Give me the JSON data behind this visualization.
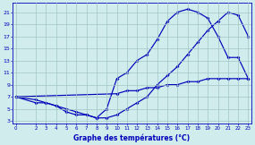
{
  "title": "Graphe des températures (°C)",
  "bg_color": "#d0ecec",
  "line_color": "#0000bb",
  "grid_color": "#a0c4c4",
  "xlim": [
    -0.3,
    23.3
  ],
  "ylim": [
    2.5,
    22.5
  ],
  "xticks": [
    0,
    2,
    3,
    4,
    5,
    6,
    7,
    8,
    9,
    10,
    11,
    12,
    13,
    14,
    15,
    16,
    17,
    18,
    19,
    20,
    21,
    22,
    23
  ],
  "yticks": [
    3,
    5,
    7,
    9,
    11,
    13,
    15,
    17,
    19,
    21
  ],
  "curve_upper_x": [
    0,
    2,
    3,
    4,
    5,
    6,
    7,
    8,
    9,
    10,
    11,
    12,
    13,
    14,
    15,
    16,
    17,
    18,
    19,
    20,
    21,
    22,
    23
  ],
  "curve_upper_y": [
    7,
    6.5,
    6,
    5.5,
    5,
    4.5,
    4,
    3.5,
    5,
    10,
    11,
    13,
    14,
    16.5,
    19.5,
    21,
    21.5,
    21,
    20,
    17,
    13.5,
    13.5,
    10
  ],
  "curve_lower_x": [
    0,
    2,
    3,
    4,
    5,
    6,
    7,
    8,
    9,
    10,
    11,
    12,
    13,
    14,
    15,
    16,
    17,
    18,
    19,
    20,
    21,
    22,
    23
  ],
  "curve_lower_y": [
    7,
    6,
    6,
    5.5,
    4.5,
    4,
    4,
    3.5,
    3.5,
    4,
    5,
    6,
    7,
    9,
    10.5,
    12,
    14,
    16,
    18,
    19.5,
    21,
    20.5,
    17
  ],
  "curve_diag_x": [
    0,
    10,
    11,
    12,
    13,
    14,
    15,
    16,
    17,
    18,
    19,
    20,
    21,
    22,
    23
  ],
  "curve_diag_y": [
    7,
    7.5,
    8,
    8,
    8.5,
    8.5,
    9,
    9,
    9.5,
    9.5,
    10,
    10,
    10,
    10,
    10
  ]
}
